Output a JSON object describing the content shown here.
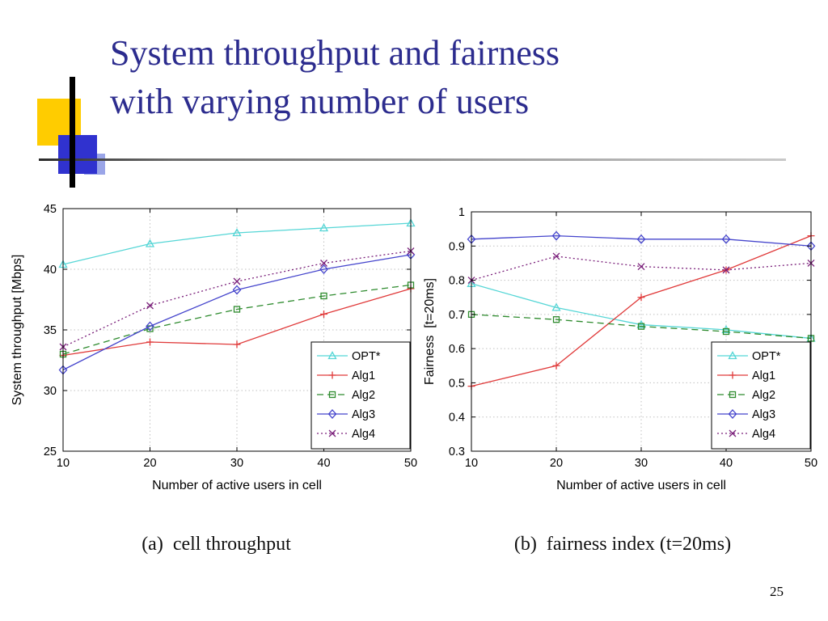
{
  "title": {
    "line1": "System throughput and fairness",
    "line2": "with varying number of users"
  },
  "page_number": "25",
  "chart_data": [
    {
      "type": "line",
      "caption": "(a)  cell throughput",
      "xlabel": "Number of active users in cell",
      "ylabel": "System throughput [Mbps]",
      "x": [
        10,
        20,
        30,
        40,
        50
      ],
      "xlim": [
        10,
        50
      ],
      "ylim": [
        25,
        45
      ],
      "xticks": [
        10,
        20,
        30,
        40,
        50
      ],
      "xtick_labels": [
        "10",
        "20",
        "30",
        "40",
        "50"
      ],
      "yticks": [
        25,
        30,
        35,
        40,
        45
      ],
      "ytick_labels": [
        "25",
        "30",
        "35",
        "40",
        "45"
      ],
      "grid": true,
      "legend_position": "bottom-right-inside",
      "series": [
        {
          "name": "OPT*",
          "marker": "triangle",
          "line": "solid",
          "color": "#55d6d6",
          "values": [
            40.4,
            42.1,
            43.0,
            43.4,
            43.8
          ]
        },
        {
          "name": "Alg1",
          "marker": "plus",
          "line": "solid",
          "color": "#e03a3a",
          "values": [
            32.9,
            34.0,
            33.8,
            36.3,
            38.4
          ]
        },
        {
          "name": "Alg2",
          "marker": "square",
          "line": "dashed",
          "color": "#2e8b2e",
          "values": [
            33.0,
            35.1,
            36.7,
            37.8,
            38.7
          ]
        },
        {
          "name": "Alg3",
          "marker": "diamond",
          "line": "solid",
          "color": "#4444cc",
          "values": [
            31.7,
            35.3,
            38.3,
            40.0,
            41.2
          ]
        },
        {
          "name": "Alg4",
          "marker": "x",
          "line": "dotted",
          "color": "#7a1f7a",
          "values": [
            33.6,
            37.0,
            39.0,
            40.5,
            41.5
          ]
        }
      ]
    },
    {
      "type": "line",
      "caption": "(b)  fairness index (t=20ms)",
      "xlabel": "Number of active users in cell",
      "ylabel": "Fairness  [t=20ms]",
      "x": [
        10,
        20,
        30,
        40,
        50
      ],
      "xlim": [
        10,
        50
      ],
      "ylim": [
        0.3,
        1.0
      ],
      "xticks": [
        10,
        20,
        30,
        40,
        50
      ],
      "xtick_labels": [
        "10",
        "20",
        "30",
        "40",
        "50"
      ],
      "yticks": [
        0.3,
        0.4,
        0.5,
        0.6,
        0.7,
        0.8,
        0.9,
        1.0
      ],
      "ytick_labels": [
        "0.3",
        "0.4",
        "0.5",
        "0.6",
        "0.7",
        "0.8",
        "0.9",
        "1"
      ],
      "grid": true,
      "legend_position": "bottom-right-inside",
      "series": [
        {
          "name": "OPT*",
          "marker": "triangle",
          "line": "solid",
          "color": "#55d6d6",
          "values": [
            0.79,
            0.72,
            0.67,
            0.655,
            0.63
          ]
        },
        {
          "name": "Alg1",
          "marker": "plus",
          "line": "solid",
          "color": "#e03a3a",
          "values": [
            0.49,
            0.55,
            0.75,
            0.83,
            0.93
          ]
        },
        {
          "name": "Alg2",
          "marker": "square",
          "line": "dashed",
          "color": "#2e8b2e",
          "values": [
            0.7,
            0.685,
            0.665,
            0.65,
            0.63
          ]
        },
        {
          "name": "Alg3",
          "marker": "diamond",
          "line": "solid",
          "color": "#4444cc",
          "values": [
            0.92,
            0.93,
            0.92,
            0.92,
            0.9
          ]
        },
        {
          "name": "Alg4",
          "marker": "x",
          "line": "dotted",
          "color": "#7a1f7a",
          "values": [
            0.8,
            0.87,
            0.84,
            0.83,
            0.85
          ]
        }
      ]
    }
  ]
}
